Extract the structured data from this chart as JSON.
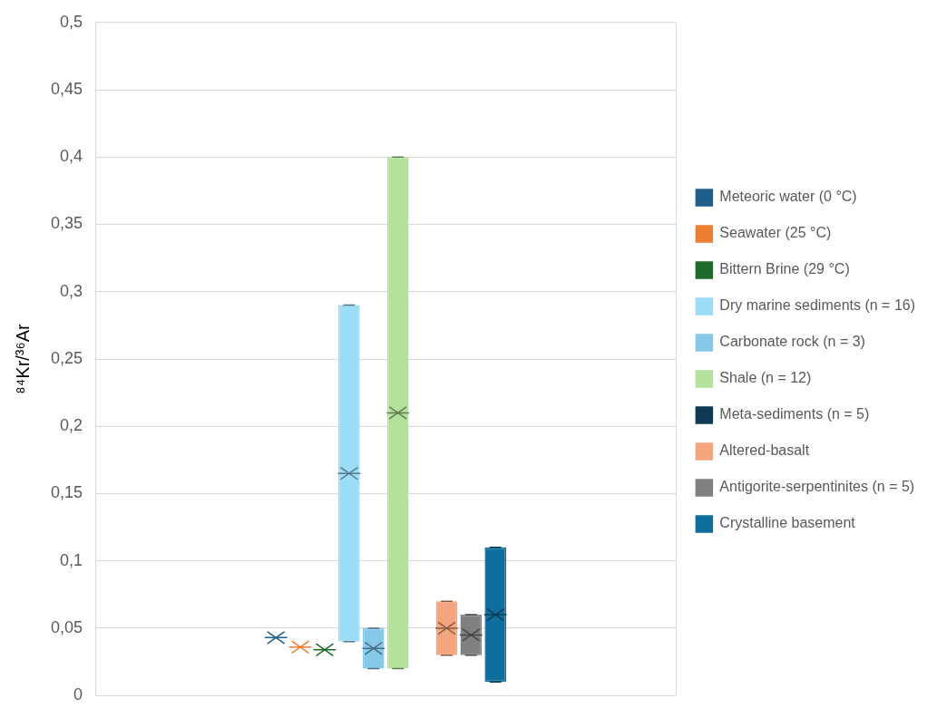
{
  "chart_data": {
    "type": "box",
    "ylabel": "⁸⁴Kr/³⁶Ar",
    "categories": [
      null
    ],
    "ylim": [
      0,
      0.5
    ],
    "yticks": [
      {
        "value": 0,
        "label": "0"
      },
      {
        "value": 0.05,
        "label": "0,05"
      },
      {
        "value": 0.1,
        "label": "0,1"
      },
      {
        "value": 0.15,
        "label": "0,15"
      },
      {
        "value": 0.2,
        "label": "0,2"
      },
      {
        "value": 0.25,
        "label": "0,25"
      },
      {
        "value": 0.3,
        "label": "0,3"
      },
      {
        "value": 0.35,
        "label": "0,35"
      },
      {
        "value": 0.4,
        "label": "0,4"
      },
      {
        "value": 0.45,
        "label": "0,45"
      },
      {
        "value": 0.5,
        "label": "0,5"
      }
    ],
    "grid": true,
    "legend": "right",
    "marker": "cross",
    "series": [
      {
        "name": "Meteoric water (0 °C)",
        "color": "#1f5f8b",
        "boxes": [
          {
            "low": 0.043,
            "q1": 0.043,
            "median": 0.043,
            "q3": 0.043,
            "high": 0.043,
            "mean": 0.043
          }
        ]
      },
      {
        "name": "Seawater (25 °C)",
        "color": "#ed7d31",
        "boxes": [
          {
            "low": 0.036,
            "q1": 0.036,
            "median": 0.036,
            "q3": 0.036,
            "high": 0.036,
            "mean": 0.036
          }
        ]
      },
      {
        "name": "Bittern Brine (29 °C)",
        "color": "#1e6b2a",
        "boxes": [
          {
            "low": 0.034,
            "q1": 0.034,
            "median": 0.034,
            "q3": 0.034,
            "high": 0.034,
            "mean": 0.034
          }
        ]
      },
      {
        "name": "Dry marine sediments (n = 16)",
        "color": "#9bdcf7",
        "boxes": [
          {
            "low": 0.04,
            "q1": 0.04,
            "median": 0.165,
            "q3": 0.29,
            "high": 0.29,
            "mean": 0.165
          }
        ]
      },
      {
        "name": "Carbonate rock (n = 3)",
        "color": "#86c8e8",
        "boxes": [
          {
            "low": 0.02,
            "q1": 0.02,
            "median": 0.035,
            "q3": 0.05,
            "high": 0.05,
            "mean": 0.035
          }
        ]
      },
      {
        "name": "Shale (n = 12)",
        "color": "#b3e29c",
        "boxes": [
          {
            "low": 0.02,
            "q1": 0.02,
            "median": 0.21,
            "q3": 0.4,
            "high": 0.4,
            "mean": 0.21
          }
        ]
      },
      {
        "name": "Meta-sediments (n = 5)",
        "color": "#0e3a55",
        "boxes": [
          null
        ]
      },
      {
        "name": "Altered-basalt",
        "color": "#f4a57e",
        "boxes": [
          {
            "low": 0.03,
            "q1": 0.03,
            "median": 0.05,
            "q3": 0.07,
            "high": 0.07,
            "mean": 0.05
          }
        ]
      },
      {
        "name": "Antigorite-serpentinites (n = 5)",
        "color": "#808080",
        "boxes": [
          {
            "low": 0.03,
            "q1": 0.03,
            "median": 0.045,
            "q3": 0.06,
            "high": 0.06,
            "mean": 0.045
          }
        ]
      },
      {
        "name": "Crystalline basement",
        "color": "#0e6f9e",
        "boxes": [
          {
            "low": 0.01,
            "q1": 0.01,
            "median": 0.06,
            "q3": 0.11,
            "high": 0.11,
            "mean": 0.06
          }
        ]
      }
    ]
  }
}
